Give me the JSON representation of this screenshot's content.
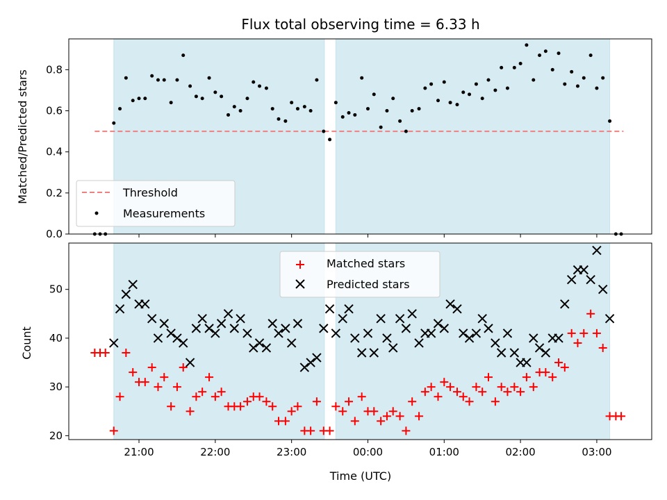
{
  "chart_data": [
    {
      "type": "scatter",
      "title": "Flux total observing time = 6.33 h",
      "ylabel": "Matched/Predicted stars",
      "ylim": [
        0,
        0.95
      ],
      "yticks": [
        "0.0",
        "0.2",
        "0.4",
        "0.6",
        "0.8"
      ],
      "xlim_hours": [
        -3.92,
        3.72
      ],
      "shaded_spans_hours": [
        [
          -3.33,
          -0.57
        ],
        [
          -0.42,
          3.17
        ]
      ],
      "threshold": {
        "name": "Threshold",
        "value": 0.5,
        "x_range_hours": [
          -3.58,
          3.35
        ],
        "color": "#f08080"
      },
      "legend_position": "lower-left",
      "series": [
        {
          "name": "Measurements",
          "color": "#000000",
          "points": [
            [
              -3.58,
              0.0
            ],
            [
              -3.51,
              0.0
            ],
            [
              -3.44,
              0.0
            ],
            [
              -3.33,
              0.54
            ],
            [
              -3.25,
              0.61
            ],
            [
              -3.17,
              0.76
            ],
            [
              -3.08,
              0.65
            ],
            [
              -3.0,
              0.66
            ],
            [
              -2.92,
              0.66
            ],
            [
              -2.83,
              0.77
            ],
            [
              -2.75,
              0.75
            ],
            [
              -2.67,
              0.75
            ],
            [
              -2.58,
              0.64
            ],
            [
              -2.5,
              0.75
            ],
            [
              -2.42,
              0.87
            ],
            [
              -2.33,
              0.72
            ],
            [
              -2.25,
              0.67
            ],
            [
              -2.17,
              0.66
            ],
            [
              -2.08,
              0.76
            ],
            [
              -2.0,
              0.69
            ],
            [
              -1.92,
              0.67
            ],
            [
              -1.83,
              0.58
            ],
            [
              -1.75,
              0.62
            ],
            [
              -1.67,
              0.6
            ],
            [
              -1.58,
              0.66
            ],
            [
              -1.5,
              0.74
            ],
            [
              -1.42,
              0.72
            ],
            [
              -1.33,
              0.71
            ],
            [
              -1.25,
              0.61
            ],
            [
              -1.17,
              0.56
            ],
            [
              -1.08,
              0.55
            ],
            [
              -1.0,
              0.64
            ],
            [
              -0.92,
              0.61
            ],
            [
              -0.83,
              0.62
            ],
            [
              -0.75,
              0.6
            ],
            [
              -0.67,
              0.75
            ],
            [
              -0.58,
              0.5
            ],
            [
              -0.5,
              0.46
            ],
            [
              -0.42,
              0.64
            ],
            [
              -0.33,
              0.57
            ],
            [
              -0.25,
              0.59
            ],
            [
              -0.17,
              0.58
            ],
            [
              -0.08,
              0.76
            ],
            [
              0.0,
              0.61
            ],
            [
              0.08,
              0.68
            ],
            [
              0.17,
              0.52
            ],
            [
              0.25,
              0.6
            ],
            [
              0.33,
              0.66
            ],
            [
              0.42,
              0.55
            ],
            [
              0.5,
              0.5
            ],
            [
              0.58,
              0.6
            ],
            [
              0.67,
              0.61
            ],
            [
              0.75,
              0.71
            ],
            [
              0.83,
              0.73
            ],
            [
              0.92,
              0.65
            ],
            [
              1.0,
              0.74
            ],
            [
              1.08,
              0.64
            ],
            [
              1.17,
              0.63
            ],
            [
              1.25,
              0.69
            ],
            [
              1.33,
              0.68
            ],
            [
              1.42,
              0.73
            ],
            [
              1.5,
              0.66
            ],
            [
              1.58,
              0.75
            ],
            [
              1.67,
              0.7
            ],
            [
              1.75,
              0.81
            ],
            [
              1.83,
              0.71
            ],
            [
              1.92,
              0.81
            ],
            [
              2.0,
              0.83
            ],
            [
              2.08,
              0.92
            ],
            [
              2.17,
              0.75
            ],
            [
              2.25,
              0.87
            ],
            [
              2.33,
              0.89
            ],
            [
              2.42,
              0.8
            ],
            [
              2.5,
              0.88
            ],
            [
              2.58,
              0.73
            ],
            [
              2.67,
              0.79
            ],
            [
              2.75,
              0.72
            ],
            [
              2.83,
              0.76
            ],
            [
              2.92,
              0.87
            ],
            [
              3.0,
              0.71
            ],
            [
              3.08,
              0.76
            ],
            [
              3.17,
              0.55
            ],
            [
              3.25,
              0.0
            ],
            [
              3.32,
              0.0
            ]
          ]
        }
      ]
    },
    {
      "type": "scatter",
      "ylabel": "Count",
      "xlabel": "Time (UTC)",
      "ylim": [
        19.2,
        59.5
      ],
      "yticks": [
        "20",
        "30",
        "40",
        "50"
      ],
      "xticks": [
        "21:00",
        "22:00",
        "23:00",
        "00:00",
        "01:00",
        "02:00",
        "03:00"
      ],
      "xlim_hours": [
        -3.92,
        3.72
      ],
      "shaded_spans_hours": [
        [
          -3.33,
          -0.57
        ],
        [
          -0.42,
          3.17
        ]
      ],
      "legend_position": "upper-center",
      "series": [
        {
          "name": "Matched stars",
          "color": "#ff0000",
          "marker": "+",
          "points": [
            [
              -3.58,
              37
            ],
            [
              -3.51,
              37
            ],
            [
              -3.44,
              37
            ],
            [
              -3.33,
              21
            ],
            [
              -3.25,
              28
            ],
            [
              -3.17,
              37
            ],
            [
              -3.08,
              33
            ],
            [
              -3.0,
              31
            ],
            [
              -2.92,
              31
            ],
            [
              -2.83,
              34
            ],
            [
              -2.75,
              30
            ],
            [
              -2.67,
              32
            ],
            [
              -2.58,
              26
            ],
            [
              -2.5,
              30
            ],
            [
              -2.42,
              34
            ],
            [
              -2.33,
              25
            ],
            [
              -2.25,
              28
            ],
            [
              -2.17,
              29
            ],
            [
              -2.08,
              32
            ],
            [
              -2.0,
              28
            ],
            [
              -1.92,
              29
            ],
            [
              -1.83,
              26
            ],
            [
              -1.75,
              26
            ],
            [
              -1.67,
              26
            ],
            [
              -1.58,
              27
            ],
            [
              -1.5,
              28
            ],
            [
              -1.42,
              28
            ],
            [
              -1.33,
              27
            ],
            [
              -1.25,
              26
            ],
            [
              -1.17,
              23
            ],
            [
              -1.08,
              23
            ],
            [
              -1.0,
              25
            ],
            [
              -0.92,
              26
            ],
            [
              -0.83,
              21
            ],
            [
              -0.75,
              21
            ],
            [
              -0.67,
              27
            ],
            [
              -0.58,
              21
            ],
            [
              -0.5,
              21
            ],
            [
              -0.42,
              26
            ],
            [
              -0.33,
              25
            ],
            [
              -0.25,
              27
            ],
            [
              -0.17,
              23
            ],
            [
              -0.08,
              28
            ],
            [
              0.0,
              25
            ],
            [
              0.08,
              25
            ],
            [
              0.17,
              23
            ],
            [
              0.25,
              24
            ],
            [
              0.33,
              25
            ],
            [
              0.42,
              24
            ],
            [
              0.5,
              21
            ],
            [
              0.58,
              27
            ],
            [
              0.67,
              24
            ],
            [
              0.75,
              29
            ],
            [
              0.83,
              30
            ],
            [
              0.92,
              28
            ],
            [
              1.0,
              31
            ],
            [
              1.08,
              30
            ],
            [
              1.17,
              29
            ],
            [
              1.25,
              28
            ],
            [
              1.33,
              27
            ],
            [
              1.42,
              30
            ],
            [
              1.5,
              29
            ],
            [
              1.58,
              32
            ],
            [
              1.67,
              27
            ],
            [
              1.75,
              30
            ],
            [
              1.83,
              29
            ],
            [
              1.92,
              30
            ],
            [
              2.0,
              29
            ],
            [
              2.08,
              32
            ],
            [
              2.17,
              30
            ],
            [
              2.25,
              33
            ],
            [
              2.33,
              33
            ],
            [
              2.42,
              32
            ],
            [
              2.5,
              35
            ],
            [
              2.58,
              34
            ],
            [
              2.67,
              41
            ],
            [
              2.75,
              39
            ],
            [
              2.83,
              41
            ],
            [
              2.92,
              45
            ],
            [
              3.0,
              41
            ],
            [
              3.08,
              38
            ],
            [
              3.17,
              24
            ],
            [
              3.25,
              24
            ],
            [
              3.32,
              24
            ]
          ]
        },
        {
          "name": "Predicted stars",
          "color": "#000000",
          "marker": "x",
          "points": [
            [
              -3.33,
              39
            ],
            [
              -3.25,
              46
            ],
            [
              -3.17,
              49
            ],
            [
              -3.08,
              51
            ],
            [
              -3.0,
              47
            ],
            [
              -2.92,
              47
            ],
            [
              -2.83,
              44
            ],
            [
              -2.75,
              40
            ],
            [
              -2.67,
              43
            ],
            [
              -2.58,
              41
            ],
            [
              -2.5,
              40
            ],
            [
              -2.42,
              39
            ],
            [
              -2.33,
              35
            ],
            [
              -2.25,
              42
            ],
            [
              -2.17,
              44
            ],
            [
              -2.08,
              42
            ],
            [
              -2.0,
              41
            ],
            [
              -1.92,
              43
            ],
            [
              -1.83,
              45
            ],
            [
              -1.75,
              42
            ],
            [
              -1.67,
              44
            ],
            [
              -1.58,
              41
            ],
            [
              -1.5,
              38
            ],
            [
              -1.42,
              39
            ],
            [
              -1.33,
              38
            ],
            [
              -1.25,
              43
            ],
            [
              -1.17,
              41
            ],
            [
              -1.08,
              42
            ],
            [
              -1.0,
              39
            ],
            [
              -0.92,
              43
            ],
            [
              -0.83,
              34
            ],
            [
              -0.75,
              35
            ],
            [
              -0.67,
              36
            ],
            [
              -0.58,
              42
            ],
            [
              -0.5,
              46
            ],
            [
              -0.42,
              41
            ],
            [
              -0.33,
              44
            ],
            [
              -0.25,
              46
            ],
            [
              -0.17,
              40
            ],
            [
              -0.08,
              37
            ],
            [
              0.0,
              41
            ],
            [
              0.08,
              37
            ],
            [
              0.17,
              44
            ],
            [
              0.25,
              40
            ],
            [
              0.33,
              38
            ],
            [
              0.42,
              44
            ],
            [
              0.5,
              42
            ],
            [
              0.58,
              45
            ],
            [
              0.67,
              39
            ],
            [
              0.75,
              41
            ],
            [
              0.83,
              41
            ],
            [
              0.92,
              43
            ],
            [
              1.0,
              42
            ],
            [
              1.08,
              47
            ],
            [
              1.17,
              46
            ],
            [
              1.25,
              41
            ],
            [
              1.33,
              40
            ],
            [
              1.42,
              41
            ],
            [
              1.5,
              44
            ],
            [
              1.58,
              42
            ],
            [
              1.67,
              39
            ],
            [
              1.75,
              37
            ],
            [
              1.83,
              41
            ],
            [
              1.92,
              37
            ],
            [
              2.0,
              35
            ],
            [
              2.08,
              35
            ],
            [
              2.17,
              40
            ],
            [
              2.25,
              38
            ],
            [
              2.33,
              37
            ],
            [
              2.42,
              40
            ],
            [
              2.5,
              40
            ],
            [
              2.58,
              47
            ],
            [
              2.67,
              52
            ],
            [
              2.75,
              54
            ],
            [
              2.83,
              54
            ],
            [
              2.92,
              52
            ],
            [
              3.0,
              58
            ],
            [
              3.08,
              50
            ],
            [
              3.17,
              44
            ]
          ]
        }
      ]
    }
  ]
}
